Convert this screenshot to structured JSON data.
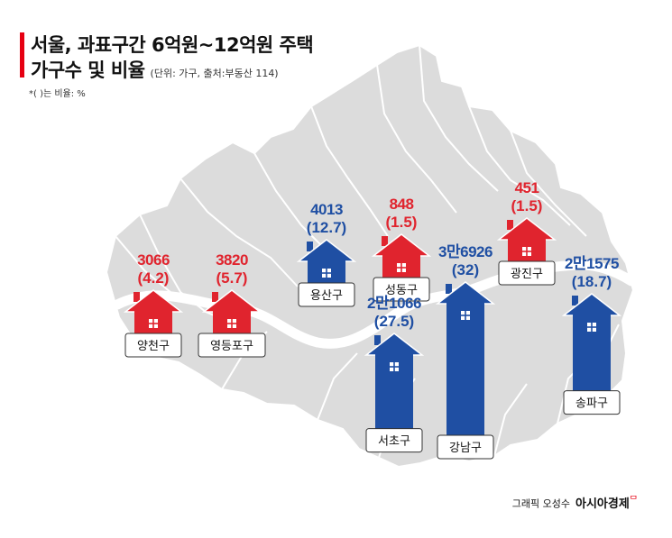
{
  "header": {
    "title_line1": "서울, 과표구간 6억원~12억원 주택",
    "title_line2": "가구수 및 비율",
    "source": "(단위: 가구, 출처:부동산 114)",
    "note": "*( )는 비율: %"
  },
  "credit": {
    "text": "그래픽 오성수",
    "brand": "아시아경제",
    "brand_mark": "ᄆ"
  },
  "colors": {
    "red": "#e0242e",
    "blue": "#1f4fa3",
    "map_fill": "#dcdcdc",
    "map_line": "#ffffff",
    "river": "#ffffff"
  },
  "chart_data": {
    "type": "bar",
    "unit": "가구",
    "categories": [
      "양천구",
      "영등포구",
      "용산구",
      "성동구",
      "서초구",
      "강남구",
      "광진구",
      "송파구"
    ],
    "series": [
      {
        "values": [
          3066,
          3820,
          4013,
          848,
          21066,
          36926,
          451,
          21575
        ]
      }
    ],
    "value_labels": [
      "3066",
      "3820",
      "4013",
      "848",
      "2만1066",
      "3만6926",
      "451",
      "2만1575"
    ],
    "ratio_labels": [
      "(4.2)",
      "(5.7)",
      "(12.7)",
      "(1.5)",
      "(27.5)",
      "(32)",
      "(1.5)",
      "(18.7)"
    ],
    "ratios": [
      4.2,
      5.7,
      12.7,
      1.5,
      27.5,
      32,
      1.5,
      18.7
    ],
    "category_colors": [
      "red",
      "red",
      "blue",
      "red",
      "blue",
      "blue",
      "red",
      "blue"
    ]
  }
}
